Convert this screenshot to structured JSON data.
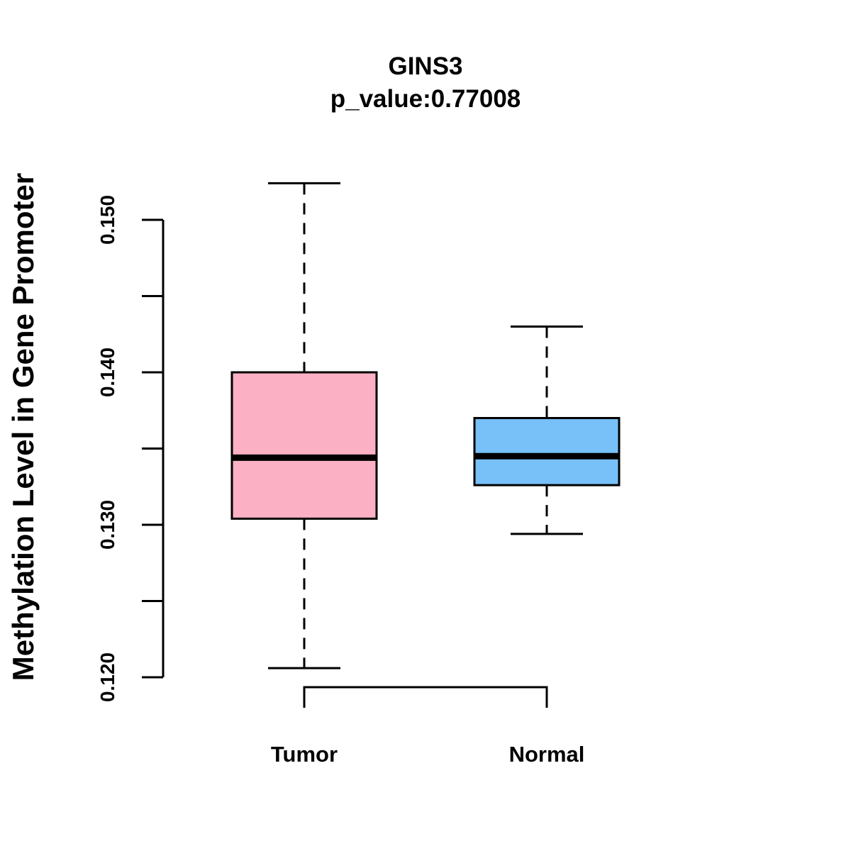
{
  "chart_data": {
    "type": "box",
    "title": "GINS3",
    "subtitle": "p_value:0.77008",
    "xlabel": "",
    "ylabel": "Methylation Level in Gene Promoter",
    "ylim": [
      0.12,
      0.15
    ],
    "yticks": [
      0.12,
      0.125,
      0.13,
      0.135,
      0.14,
      0.145,
      0.15
    ],
    "ytick_labels": [
      "0.120",
      "",
      "0.130",
      "",
      "0.140",
      "",
      "0.150"
    ],
    "categories": [
      "Tumor",
      "Normal"
    ],
    "boxes": [
      {
        "name": "Tumor",
        "whisker_low": 0.1206,
        "q1": 0.1304,
        "median": 0.1344,
        "q3": 0.14,
        "whisker_high": 0.1524,
        "color": "#FBB1C3"
      },
      {
        "name": "Normal",
        "whisker_low": 0.1294,
        "q1": 0.1326,
        "median": 0.1345,
        "q3": 0.137,
        "whisker_high": 0.143,
        "color": "#77C0F8"
      }
    ],
    "comparison_bracket": [
      "Tumor",
      "Normal"
    ],
    "grid": false,
    "legend": "none"
  }
}
